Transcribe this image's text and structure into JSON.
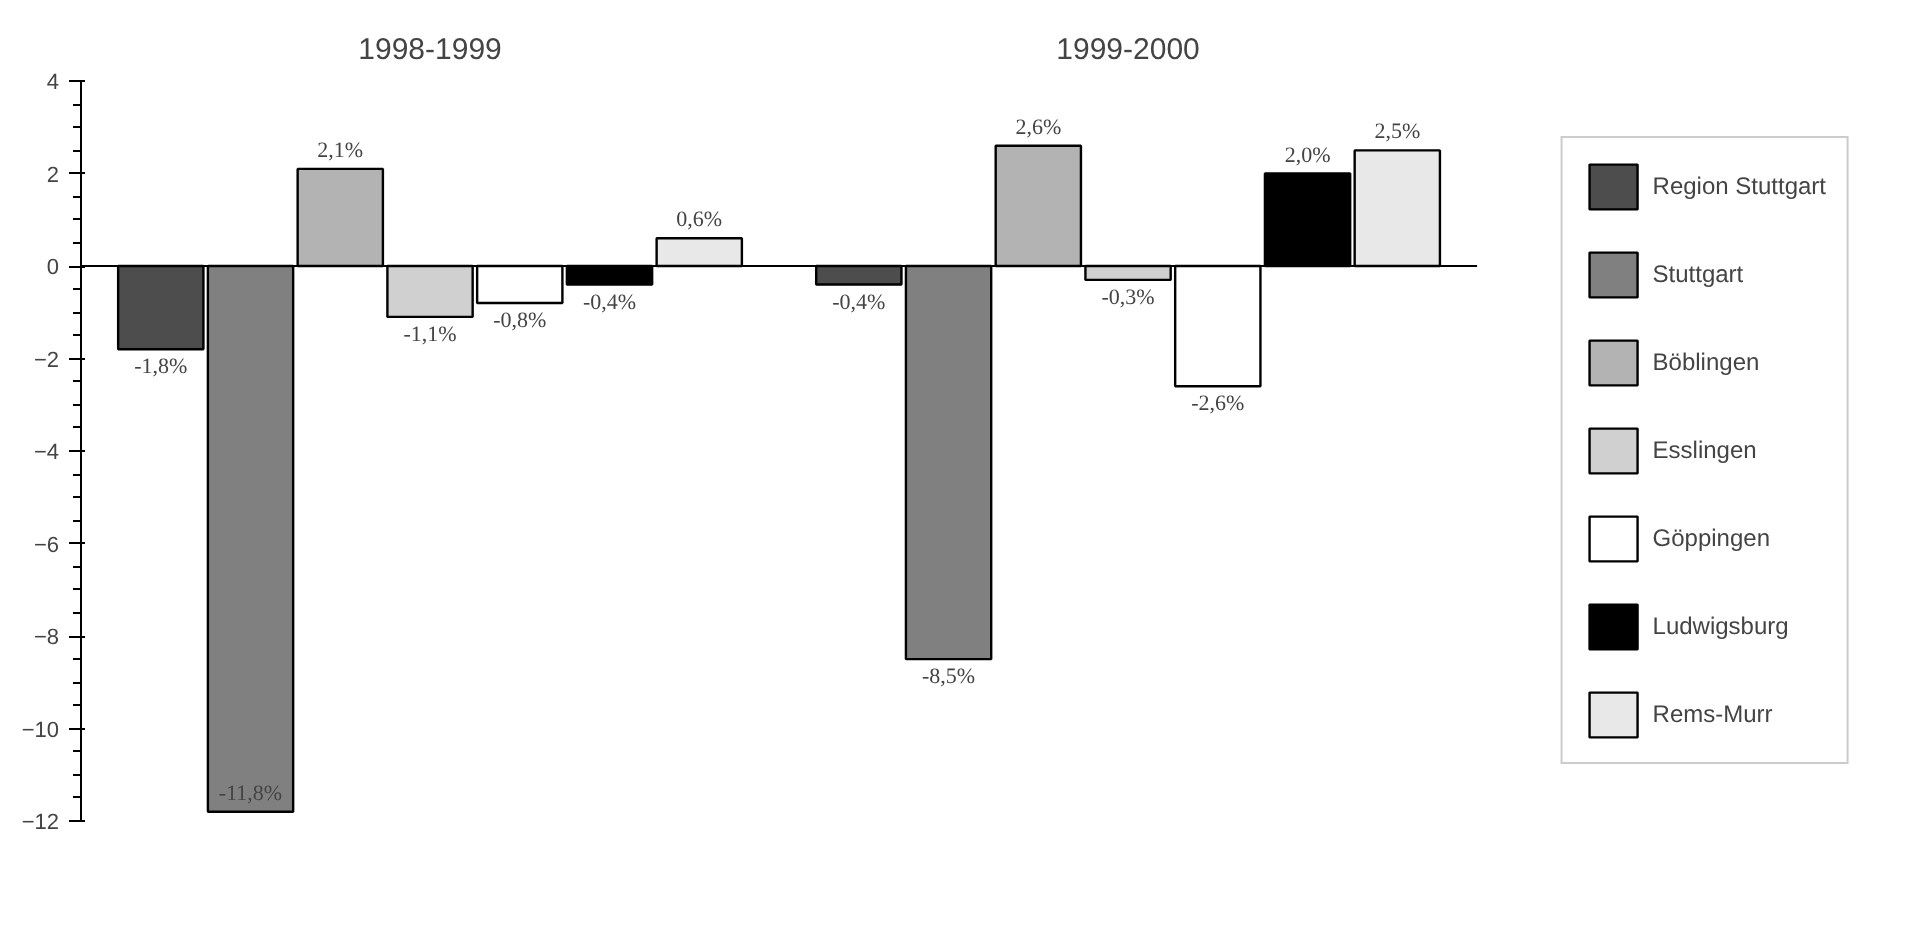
{
  "chart_data": {
    "type": "bar",
    "categories": [
      "1998-1999",
      "1999-2000"
    ],
    "ylim": [
      -12,
      4
    ],
    "yticks": [
      -12,
      -10,
      -8,
      -6,
      -4,
      -2,
      0,
      2,
      4
    ],
    "legend": "right",
    "series": [
      {
        "name": "Region Stuttgart",
        "color": "#4d4d4d",
        "values": [
          -1.8,
          -0.4
        ],
        "value_labels": [
          "-1,8%",
          "-0,4%"
        ]
      },
      {
        "name": "Stuttgart",
        "color": "#808080",
        "values": [
          -11.8,
          -8.5
        ],
        "value_labels": [
          "-11,8%",
          "-8,5%"
        ]
      },
      {
        "name": "Böblingen",
        "color": "#b3b3b3",
        "values": [
          2.1,
          2.6
        ],
        "value_labels": [
          "2,1%",
          "2,6%"
        ]
      },
      {
        "name": "Esslingen",
        "color": "#d0d0d0",
        "values": [
          -1.1,
          -0.3
        ],
        "value_labels": [
          "-1,1%",
          "-0,3%"
        ]
      },
      {
        "name": "Göppingen",
        "color": "#ffffff",
        "values": [
          -0.8,
          -2.6
        ],
        "value_labels": [
          "-0,8%",
          "-2,6%"
        ]
      },
      {
        "name": "Ludwigsburg",
        "color": "#000000",
        "values": [
          -0.4,
          2.0
        ],
        "value_labels": [
          "-0,4%",
          "2,0%"
        ]
      },
      {
        "name": "Rems-Murr",
        "color": "#e8e8e8",
        "values": [
          0.6,
          2.5
        ],
        "value_labels": [
          "0,6%",
          "2,5%"
        ]
      }
    ]
  }
}
